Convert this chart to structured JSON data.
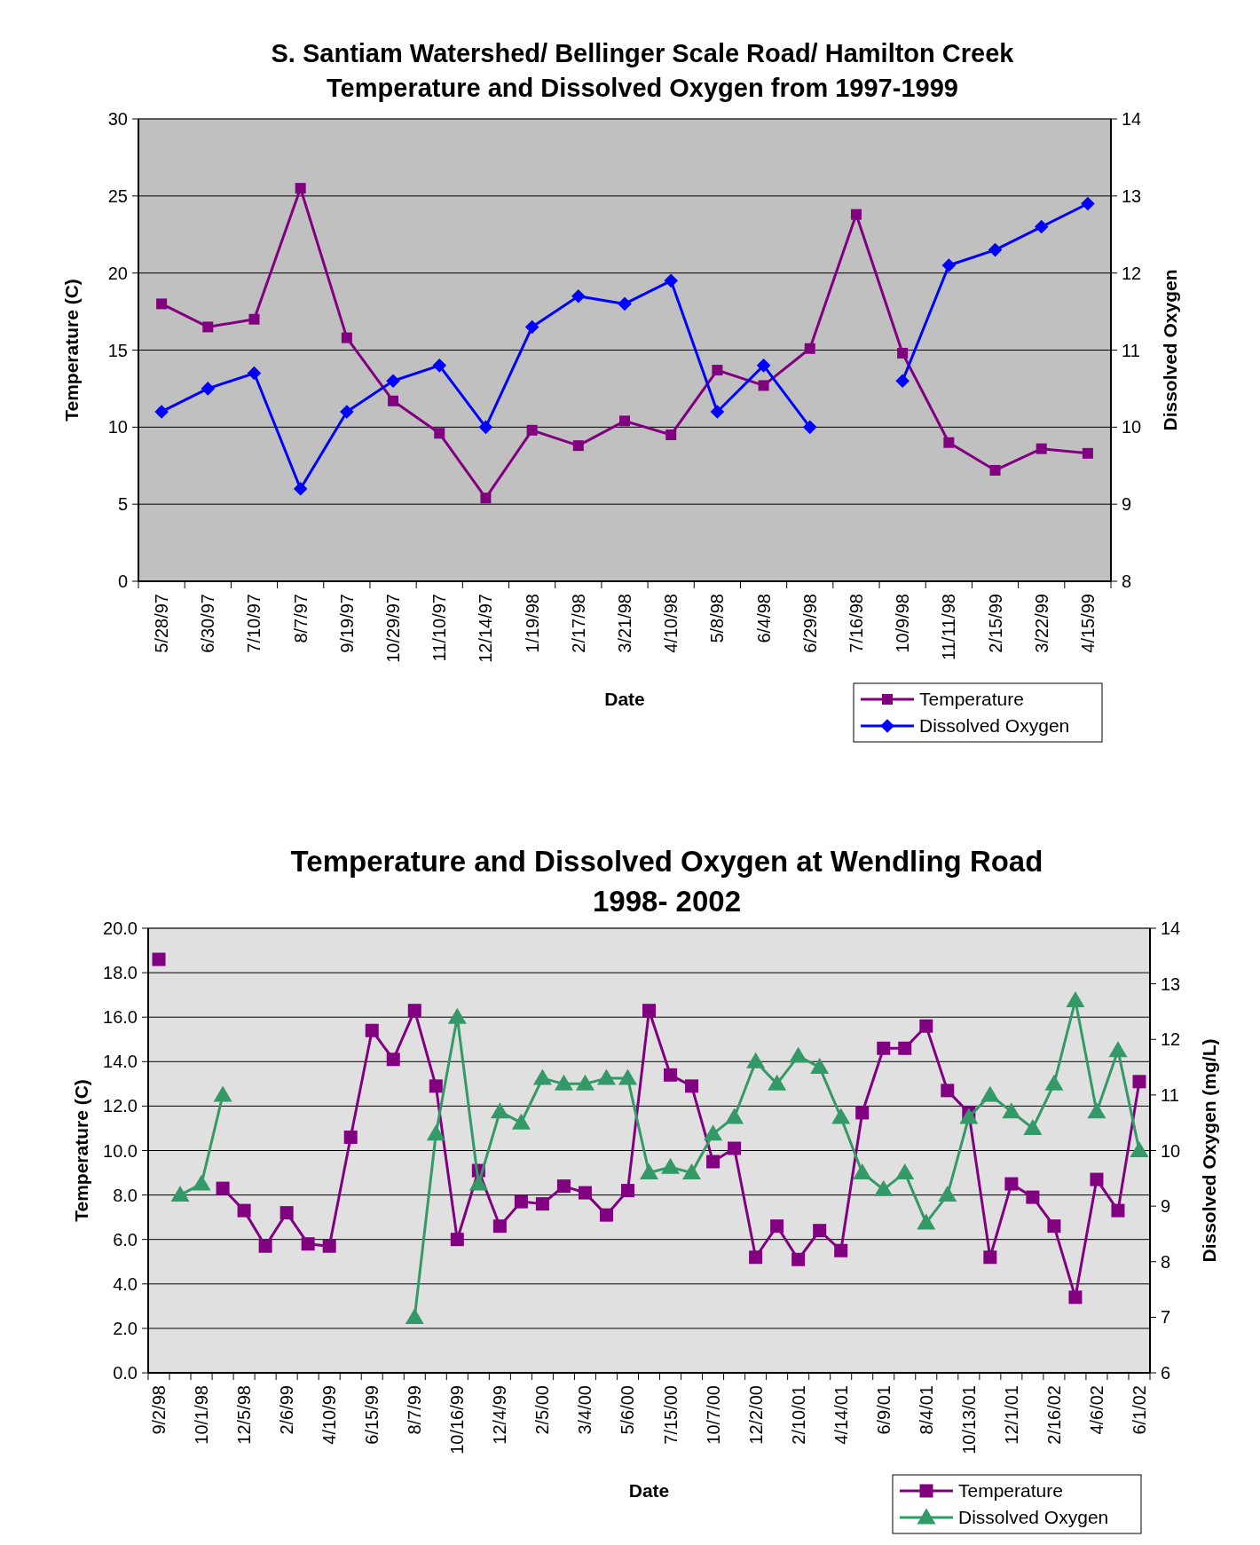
{
  "chart_data": [
    {
      "type": "line",
      "title": "S. Santiam Watershed/ Bellinger Scale Road/ Hamilton Creek\nTemperature and Dissolved Oxygen from 1997-1999",
      "xlabel": "Date",
      "ylabel": "Temperature (C)",
      "y2label": "Dissolved Oxygen",
      "categories": [
        "5/28/97",
        "6/30/97",
        "7/10/97",
        "8/7/97",
        "9/19/97",
        "10/29/97",
        "11/10/97",
        "12/14/97",
        "1/19/98",
        "2/17/98",
        "3/21/98",
        "4/10/98",
        "5/8/98",
        "6/4/98",
        "6/29/98",
        "7/16/98",
        "10/9/98",
        "11/11/98",
        "2/15/99",
        "3/22/99",
        "4/15/99"
      ],
      "series": [
        {
          "name": "Temperature",
          "color": "#800080",
          "marker": "square",
          "values": [
            18,
            16.5,
            17,
            25.5,
            15.8,
            11.7,
            9.6,
            5.4,
            9.8,
            8.8,
            10.4,
            9.5,
            13.7,
            12.7,
            15.1,
            23.8,
            14.8,
            9,
            7.2,
            8.6,
            8.3
          ]
        },
        {
          "name": "Dissolved Oxygen",
          "color": "#0000ff",
          "marker": "diamond",
          "axis": "y2",
          "values": [
            10.2,
            10.5,
            10.7,
            9.2,
            10.2,
            10.6,
            10.8,
            10,
            11.3,
            11.7,
            11.6,
            11.9,
            10.2,
            10.8,
            10,
            null,
            10.6,
            12.1,
            12.3,
            12.6,
            12.9
          ]
        }
      ],
      "ylim": [
        0,
        30
      ],
      "yticks": [
        0,
        5,
        10,
        15,
        20,
        25,
        30
      ],
      "y2lim": [
        8,
        14
      ],
      "y2ticks": [
        8,
        9,
        10,
        11,
        12,
        13,
        14
      ],
      "grid": "y",
      "legend": "bottom right"
    },
    {
      "type": "line",
      "title": "Temperature and Dissolved Oxygen at Wendling Road\n1998- 2002",
      "xlabel": "Date",
      "ylabel": "Temperature (C)",
      "y2label": "Dissolved Oxygen (mg/L)",
      "categories": [
        "9/2/98",
        null,
        "10/1/98",
        null,
        "12/5/98",
        null,
        "2/6/99",
        null,
        "4/10/99",
        null,
        "6/15/99",
        null,
        "8/7/99",
        null,
        "10/16/99",
        null,
        "12/4/99",
        null,
        "2/5/00",
        null,
        "3/4/00",
        null,
        "5/6/00",
        null,
        "7/15/00",
        null,
        "10/7/00",
        null,
        "12/2/00",
        null,
        "2/10/01",
        null,
        "4/14/01",
        null,
        "6/9/01",
        null,
        "8/4/01",
        null,
        "10/13/01",
        null,
        "12/1/01",
        null,
        "2/16/02",
        null,
        "4/6/02",
        null,
        "6/1/02"
      ],
      "series": [
        {
          "name": "Temperature",
          "color": "#800080",
          "marker": "square",
          "values": [
            18.6,
            null,
            null,
            8.3,
            7.3,
            5.7,
            7.2,
            5.8,
            5.7,
            10.6,
            15.4,
            14.1,
            16.3,
            12.9,
            6,
            9.1,
            6.6,
            7.7,
            7.6,
            8.4,
            8.1,
            7.1,
            8.2,
            16.3,
            13.4,
            12.9,
            9.5,
            10.1,
            5.2,
            6.6,
            5.1,
            6.4,
            5.5,
            11.7,
            14.6,
            14.6,
            15.6,
            12.7,
            11.7,
            5.2,
            8.5,
            7.9,
            6.6,
            3.4,
            8.7,
            7.3,
            13.1
          ]
        },
        {
          "name": "Dissolved Oxygen",
          "color": "#339966",
          "marker": "triangle",
          "axis": "y2",
          "values": [
            null,
            9.2,
            9.4,
            11,
            null,
            null,
            null,
            null,
            null,
            null,
            null,
            null,
            7,
            10.3,
            12.4,
            9.4,
            10.7,
            10.5,
            11.3,
            11.2,
            11.2,
            11.3,
            11.3,
            9.6,
            9.7,
            9.6,
            10.3,
            10.6,
            11.6,
            11.2,
            11.7,
            11.5,
            10.6,
            9.6,
            9.3,
            9.6,
            8.7,
            9.2,
            10.6,
            11,
            10.7,
            10.4,
            11.2,
            12.7,
            10.7,
            11.8,
            10
          ]
        }
      ],
      "ylim": [
        0,
        20
      ],
      "yticks": [
        {
          "value": 0,
          "label": "0.0"
        },
        {
          "value": 2,
          "label": "2.0"
        },
        {
          "value": 4,
          "label": "4.0"
        },
        {
          "value": 6,
          "label": "6.0"
        },
        {
          "value": 8,
          "label": "8.0"
        },
        {
          "value": 10,
          "label": "10.0"
        },
        {
          "value": 12,
          "label": "12.0"
        },
        {
          "value": 14,
          "label": "14.0"
        },
        {
          "value": 16,
          "label": "16.0"
        },
        {
          "value": 18,
          "label": "18.0"
        },
        {
          "value": 20,
          "label": "20.0"
        }
      ],
      "y2lim": [
        6,
        14
      ],
      "y2ticks": [
        6,
        7,
        8,
        9,
        10,
        11,
        12,
        13,
        14
      ],
      "grid": "y",
      "legend": "bottom right"
    }
  ]
}
